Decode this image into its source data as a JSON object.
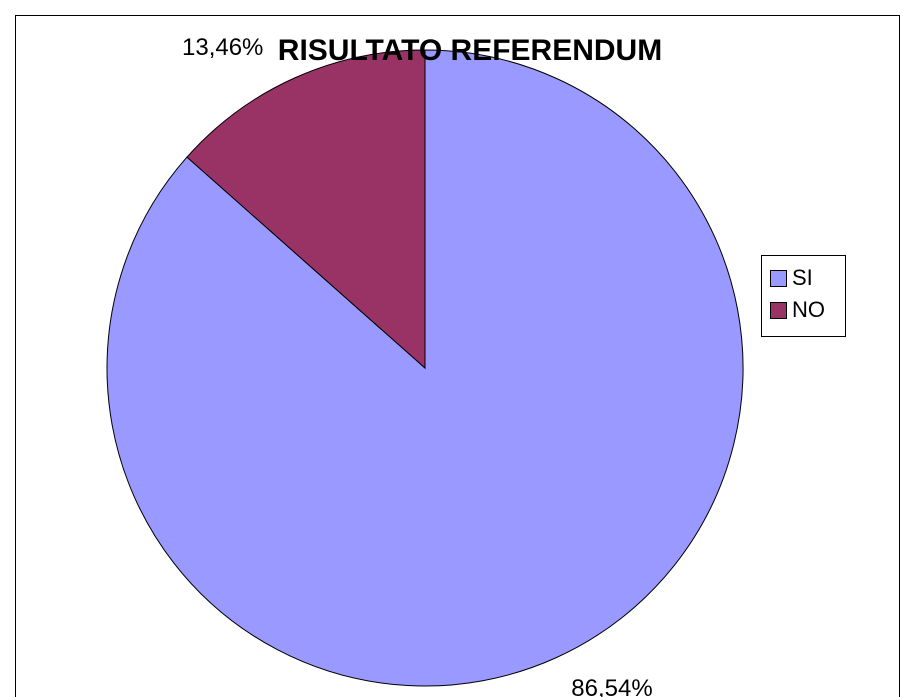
{
  "chart_data": {
    "type": "pie",
    "title": "RISULTATO REFERENDUM",
    "categories": [
      "SI",
      "NO"
    ],
    "values": [
      86.54,
      13.46
    ],
    "data_labels": [
      "86,54%",
      "13,46%"
    ],
    "colors": [
      "#9999FF",
      "#993366"
    ],
    "legend_position": "right"
  }
}
